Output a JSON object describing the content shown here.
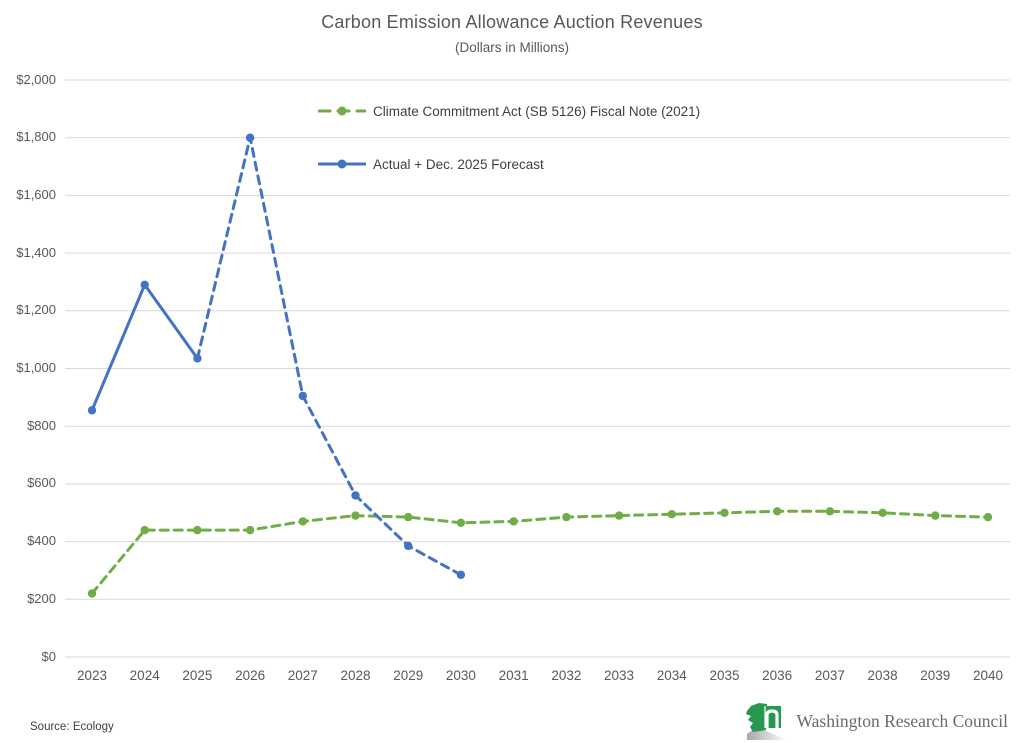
{
  "title": "Carbon Emission Allowance Auction Revenues",
  "subtitle": "(Dollars in Millions)",
  "footer": {
    "source_note": "Source: Ecology",
    "logo_text": "Washington Research Council",
    "logo_green": "#27984F"
  },
  "colors": {
    "green_series": "#70AD47",
    "blue_series": "#4472C4",
    "gridline": "#D9D9D9",
    "axis_text": "#595959",
    "legend_text": "#404040"
  },
  "chart_data": {
    "type": "line",
    "title": "Carbon Emission Allowance Auction Revenues",
    "subtitle": "(Dollars in Millions)",
    "x": [
      "2023",
      "2024",
      "2025",
      "2026",
      "2027",
      "2028",
      "2029",
      "2030",
      "2031",
      "2032",
      "2033",
      "2034",
      "2035",
      "2036",
      "2037",
      "2038",
      "2039",
      "2040"
    ],
    "ylim": [
      0,
      2000
    ],
    "ytick_step": 200,
    "ytick_labels": [
      "$0",
      "$200",
      "$400",
      "$600",
      "$800",
      "$1,000",
      "$1,200",
      "$1,400",
      "$1,600",
      "$1,800",
      "$2,000"
    ],
    "grid": "horizontal",
    "legend_position": "top-center",
    "series": [
      {
        "name": "Climate Commitment Act (SB 5126) Fiscal Note (2021)",
        "color": "#70AD47",
        "marker": "circle",
        "values": [
          220,
          440,
          440,
          440,
          470,
          490,
          485,
          465,
          470,
          485,
          490,
          495,
          500,
          505,
          505,
          500,
          490,
          485
        ],
        "segments": [
          {
            "from": 0,
            "to": 17,
            "dashed": true
          }
        ]
      },
      {
        "name": "Actual + Dec. 2025 Forecast",
        "color": "#4472C4",
        "marker": "circle",
        "values": [
          855,
          1290,
          1035,
          1800,
          905,
          560,
          385,
          285,
          null,
          null,
          null,
          null,
          null,
          null,
          null,
          null,
          null,
          null
        ],
        "segments": [
          {
            "from": 0,
            "to": 2,
            "dashed": false
          },
          {
            "from": 2,
            "to": 7,
            "dashed": true
          }
        ]
      }
    ]
  }
}
